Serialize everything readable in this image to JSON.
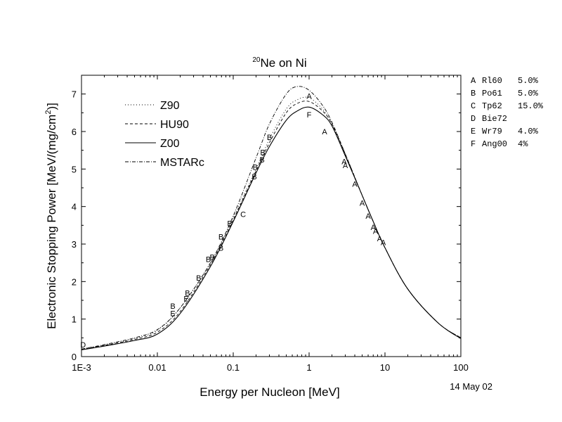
{
  "chart_data": {
    "type": "line",
    "title_sup": "20",
    "title_main": "Ne on Ni",
    "xlabel": "Energy per Nucleon [MeV]",
    "ylabel_main": "Electronic Stopping Power [MeV/(mg/cm",
    "ylabel_sup": "2",
    "ylabel_end": ")]",
    "x_scale": "log",
    "xlim": [
      0.001,
      100
    ],
    "ylim": [
      0,
      7.5
    ],
    "x_ticks": [
      {
        "value": 0.001,
        "label": "1E-3"
      },
      {
        "value": 0.01,
        "label": "0.01"
      },
      {
        "value": 0.1,
        "label": "0.1"
      },
      {
        "value": 1,
        "label": "1"
      },
      {
        "value": 10,
        "label": "10"
      },
      {
        "value": 100,
        "label": "100"
      }
    ],
    "y_ticks": [
      {
        "value": 0,
        "label": "0"
      },
      {
        "value": 1,
        "label": "1"
      },
      {
        "value": 2,
        "label": "2"
      },
      {
        "value": 3,
        "label": "3"
      },
      {
        "value": 4,
        "label": "4"
      },
      {
        "value": 5,
        "label": "5"
      },
      {
        "value": 6,
        "label": "6"
      },
      {
        "value": 7,
        "label": "7"
      }
    ],
    "date_stamp": "14 May 02",
    "legend_position": "top-left",
    "series": [
      {
        "name": "Z90",
        "dash": "dotted",
        "x": [
          0.001,
          0.002,
          0.005,
          0.01,
          0.02,
          0.05,
          0.1,
          0.2,
          0.3,
          0.5,
          0.7,
          1,
          1.5,
          2,
          3,
          5,
          7,
          10,
          20,
          50,
          100
        ],
        "y": [
          0.2,
          0.3,
          0.48,
          0.7,
          1.3,
          2.5,
          3.7,
          5.0,
          5.8,
          6.6,
          6.85,
          6.9,
          6.6,
          6.2,
          5.4,
          4.3,
          3.6,
          2.9,
          1.8,
          0.9,
          0.5
        ]
      },
      {
        "name": "HU90",
        "dash": "dashed",
        "x": [
          0.001,
          0.002,
          0.005,
          0.01,
          0.02,
          0.05,
          0.1,
          0.2,
          0.3,
          0.5,
          0.7,
          1,
          1.5,
          2,
          3,
          5,
          7,
          10,
          20,
          50,
          100
        ],
        "y": [
          0.2,
          0.3,
          0.46,
          0.65,
          1.2,
          2.45,
          3.65,
          4.95,
          5.7,
          6.5,
          6.75,
          6.8,
          6.55,
          6.2,
          5.4,
          4.3,
          3.6,
          2.9,
          1.8,
          0.9,
          0.5
        ]
      },
      {
        "name": "Z00",
        "dash": "solid",
        "x": [
          0.001,
          0.002,
          0.005,
          0.01,
          0.02,
          0.05,
          0.1,
          0.2,
          0.3,
          0.5,
          0.7,
          1,
          1.5,
          2,
          3,
          5,
          7,
          10,
          20,
          50,
          100
        ],
        "y": [
          0.18,
          0.28,
          0.43,
          0.6,
          1.15,
          2.4,
          3.6,
          4.9,
          5.6,
          6.3,
          6.55,
          6.65,
          6.45,
          6.15,
          5.35,
          4.3,
          3.6,
          2.9,
          1.8,
          0.9,
          0.48
        ]
      },
      {
        "name": "MSTARc",
        "dash": "dashdot",
        "x": [
          0.001,
          0.002,
          0.005,
          0.01,
          0.02,
          0.05,
          0.1,
          0.2,
          0.3,
          0.5,
          0.7,
          1,
          1.5,
          2,
          3,
          5,
          7,
          10,
          20,
          50,
          100
        ],
        "y": [
          0.2,
          0.32,
          0.5,
          0.72,
          1.3,
          2.5,
          3.75,
          5.3,
          6.2,
          7.0,
          7.2,
          7.1,
          6.7,
          6.25,
          5.4,
          4.3,
          3.6,
          2.9,
          1.8,
          0.9,
          0.5
        ]
      }
    ],
    "data_points": [
      {
        "letter": "D",
        "x": 0.00105,
        "y": 0.32
      },
      {
        "letter": "E",
        "x": 0.016,
        "y": 1.15
      },
      {
        "letter": "B",
        "x": 0.016,
        "y": 1.35
      },
      {
        "letter": "E",
        "x": 0.024,
        "y": 1.55
      },
      {
        "letter": "B",
        "x": 0.025,
        "y": 1.7
      },
      {
        "letter": "B",
        "x": 0.035,
        "y": 2.1
      },
      {
        "letter": "B",
        "x": 0.047,
        "y": 2.6
      },
      {
        "letter": "B",
        "x": 0.053,
        "y": 2.65
      },
      {
        "letter": "B",
        "x": 0.069,
        "y": 2.9
      },
      {
        "letter": "B",
        "x": 0.069,
        "y": 3.2
      },
      {
        "letter": "B",
        "x": 0.09,
        "y": 3.55
      },
      {
        "letter": "C",
        "x": 0.135,
        "y": 3.8
      },
      {
        "letter": "B",
        "x": 0.19,
        "y": 4.8
      },
      {
        "letter": "B",
        "x": 0.195,
        "y": 5.05
      },
      {
        "letter": "B",
        "x": 0.24,
        "y": 5.25
      },
      {
        "letter": "B",
        "x": 0.245,
        "y": 5.45
      },
      {
        "letter": "B",
        "x": 0.3,
        "y": 5.85
      },
      {
        "letter": "A",
        "x": 1.0,
        "y": 6.95
      },
      {
        "letter": "F",
        "x": 1.0,
        "y": 6.45
      },
      {
        "letter": "A",
        "x": 1.6,
        "y": 6.0
      },
      {
        "letter": "A",
        "x": 2.9,
        "y": 5.2
      },
      {
        "letter": "A",
        "x": 3.0,
        "y": 5.1
      },
      {
        "letter": "A",
        "x": 4.0,
        "y": 4.6
      },
      {
        "letter": "A",
        "x": 5.0,
        "y": 4.1
      },
      {
        "letter": "A",
        "x": 6.0,
        "y": 3.75
      },
      {
        "letter": "A",
        "x": 7.0,
        "y": 3.45
      },
      {
        "letter": "A",
        "x": 7.5,
        "y": 3.35
      },
      {
        "letter": "A",
        "x": 8.5,
        "y": 3.15
      },
      {
        "letter": "A",
        "x": 9.5,
        "y": 3.05
      }
    ],
    "references": [
      {
        "letter": "A",
        "ref": "Rl60",
        "err": "5.0%"
      },
      {
        "letter": "B",
        "ref": "Po61",
        "err": "5.0%"
      },
      {
        "letter": "C",
        "ref": "Tp62",
        "err": "15.0%"
      },
      {
        "letter": "D",
        "ref": "Bie72",
        "err": ""
      },
      {
        "letter": "E",
        "ref": "Wr79",
        "err": "4.0%"
      },
      {
        "letter": "F",
        "ref": "Ang00",
        "err": "4%"
      }
    ]
  }
}
